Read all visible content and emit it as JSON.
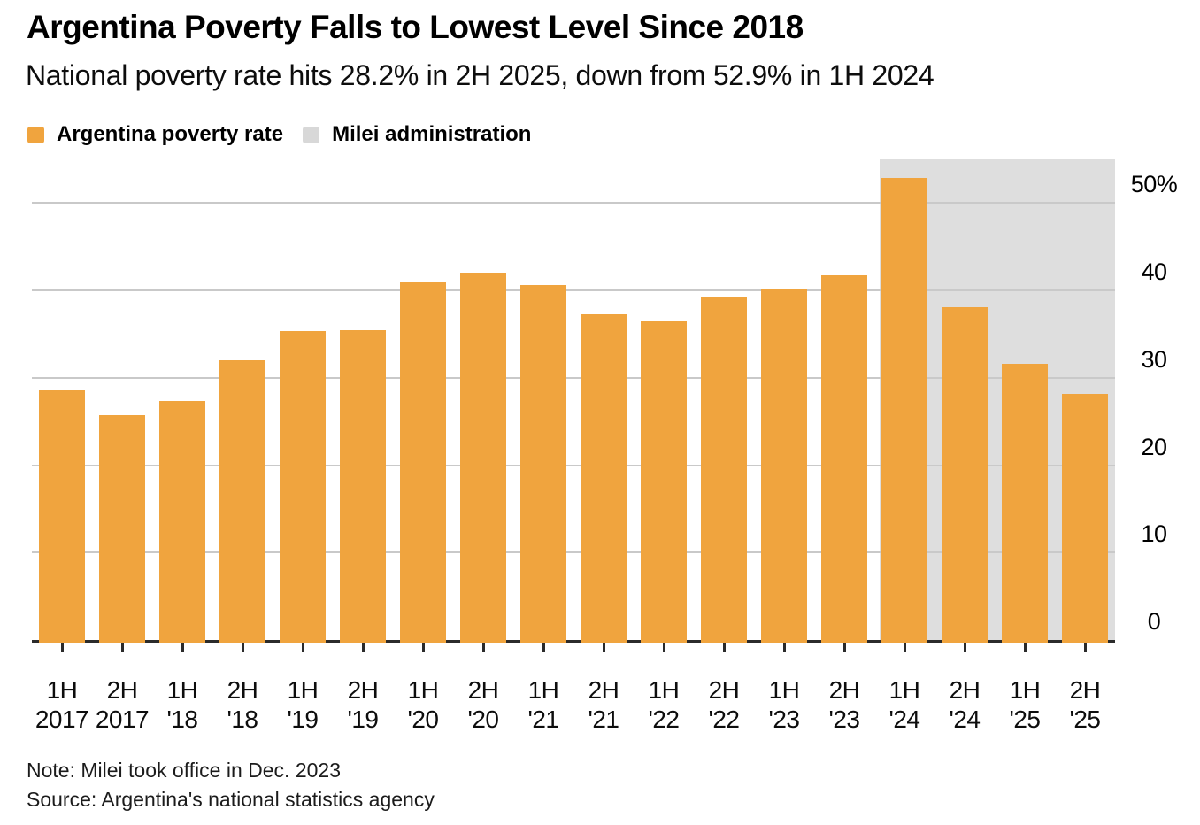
{
  "header": {
    "title": "Argentina Poverty Falls to Lowest Level Since 2018",
    "subtitle": "National poverty rate hits 28.2% in 2H 2025, down from 52.9% in 1H 2024"
  },
  "legend": [
    {
      "label": "Argentina poverty rate",
      "color": "#F0A43E"
    },
    {
      "label": "Milei administration",
      "color": "#D8D8D8"
    }
  ],
  "chart_data": {
    "type": "bar",
    "title": "Argentina Poverty Falls to Lowest Level Since 2018",
    "subtitle": "National poverty rate hits 28.2% in 2H 2025, down from 52.9% in 1H 2024",
    "series_name": "Argentina poverty rate",
    "categories": [
      "1H 2017",
      "2H 2017",
      "1H '18",
      "2H '18",
      "1H '19",
      "2H '19",
      "1H '20",
      "2H '20",
      "1H '21",
      "2H '21",
      "1H '22",
      "2H '22",
      "1H '23",
      "2H '23",
      "1H '24",
      "2H '24",
      "1H '25",
      "2H '25"
    ],
    "category_lines": [
      [
        "1H",
        "2017"
      ],
      [
        "2H",
        "2017"
      ],
      [
        "1H",
        "'18"
      ],
      [
        "2H",
        "'18"
      ],
      [
        "1H",
        "'19"
      ],
      [
        "2H",
        "'19"
      ],
      [
        "1H",
        "'20"
      ],
      [
        "2H",
        "'20"
      ],
      [
        "1H",
        "'21"
      ],
      [
        "2H",
        "'21"
      ],
      [
        "1H",
        "'22"
      ],
      [
        "2H",
        "'22"
      ],
      [
        "1H",
        "'23"
      ],
      [
        "2H",
        "'23"
      ],
      [
        "1H",
        "'24"
      ],
      [
        "2H",
        "'24"
      ],
      [
        "1H",
        "'25"
      ],
      [
        "2H",
        "'25"
      ]
    ],
    "values": [
      28.6,
      25.7,
      27.3,
      32.0,
      35.4,
      35.5,
      40.9,
      42.0,
      40.6,
      37.3,
      36.5,
      39.2,
      40.1,
      41.7,
      52.9,
      38.1,
      31.6,
      28.2
    ],
    "unit": "%",
    "ylabel": "",
    "xlabel": "",
    "ylim": [
      0,
      55
    ],
    "yticks": [
      {
        "value": 50,
        "label": "50%"
      },
      {
        "value": 40,
        "label": "40"
      },
      {
        "value": 30,
        "label": "30"
      },
      {
        "value": 20,
        "label": "20"
      },
      {
        "value": 10,
        "label": "10"
      },
      {
        "value": 0,
        "label": "0"
      }
    ],
    "grid": "horizontal",
    "legend_position": "top-left",
    "bar_color": "#F0A43E",
    "highlight_region": {
      "label": "Milei administration",
      "start_category": "1H '24",
      "end_category": "2H '25",
      "start_index": 14,
      "end_index": 17,
      "color": "#DEDEDE"
    }
  },
  "colors": {
    "bar": "#F0A43E",
    "region": "#DEDEDE",
    "legend_region_swatch": "#D8D8D8",
    "gridline": "#C9C9C9",
    "axis": "#2B2B2B",
    "text": "#000000"
  },
  "footer": {
    "note": "Note: Milei took office in Dec. 2023",
    "source": "Source: Argentina's national statistics agency"
  }
}
